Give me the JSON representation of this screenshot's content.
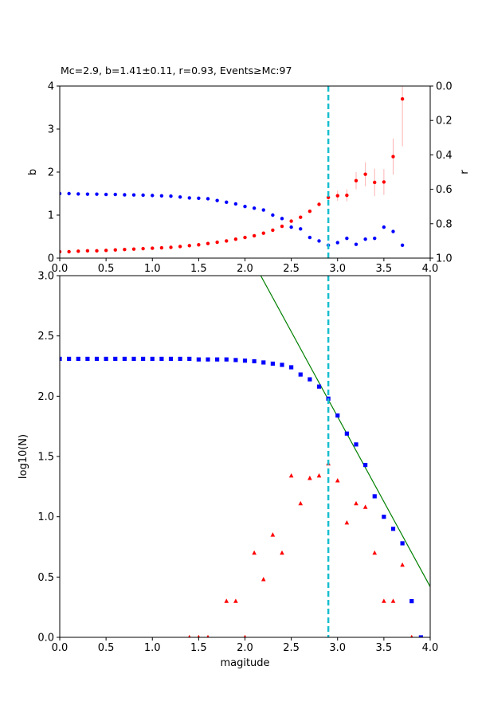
{
  "chart_data": [
    {
      "type": "scatter",
      "title": "Mc=2.9, b=1.41±0.11, r=0.93, Events≥Mc:97",
      "xlabel": "",
      "ylabel": "b",
      "y2label": "r",
      "xlim": [
        0,
        4
      ],
      "ylim": [
        0,
        4
      ],
      "y2lim": [
        1,
        0
      ],
      "xticks": [
        "0.0",
        "0.5",
        "1.0",
        "1.5",
        "2.0",
        "2.5",
        "3.0",
        "3.5",
        "4.0"
      ],
      "yticks": [
        "0",
        "1",
        "2",
        "3",
        "4"
      ],
      "y2ticks": [
        "0.0",
        "0.2",
        "0.4",
        "0.6",
        "0.8",
        "1.0"
      ],
      "mc_line": 2.9,
      "series": [
        {
          "axis": "left",
          "color": "#ff0000",
          "x": [
            0.0,
            0.1,
            0.2,
            0.3,
            0.4,
            0.5,
            0.6,
            0.7,
            0.8,
            0.9,
            1.0,
            1.1,
            1.2,
            1.3,
            1.4,
            1.5,
            1.6,
            1.7,
            1.8,
            1.9,
            2.0,
            2.1,
            2.2,
            2.3,
            2.4,
            2.5,
            2.6,
            2.7,
            2.8,
            2.9,
            3.0,
            3.1,
            3.2,
            3.3,
            3.4,
            3.5,
            3.6,
            3.7
          ],
          "y": [
            0.15,
            0.15,
            0.16,
            0.17,
            0.17,
            0.18,
            0.19,
            0.2,
            0.21,
            0.22,
            0.23,
            0.24,
            0.25,
            0.27,
            0.29,
            0.31,
            0.34,
            0.37,
            0.4,
            0.44,
            0.48,
            0.52,
            0.58,
            0.65,
            0.74,
            0.86,
            0.95,
            1.09,
            1.25,
            1.41,
            1.45,
            1.46,
            1.8,
            1.95,
            1.76,
            1.77,
            2.36,
            3.7
          ],
          "err": [
            0,
            0,
            0,
            0,
            0,
            0,
            0,
            0,
            0,
            0,
            0,
            0,
            0,
            0,
            0,
            0,
            0,
            0,
            0,
            0,
            0,
            0,
            0,
            0,
            0,
            0,
            0,
            0,
            0,
            0.11,
            0.12,
            0.14,
            0.2,
            0.28,
            0.32,
            0.3,
            0.42,
            1.1
          ]
        },
        {
          "axis": "right",
          "color": "#0000ff",
          "x": [
            0.0,
            0.1,
            0.2,
            0.3,
            0.4,
            0.5,
            0.6,
            0.7,
            0.8,
            0.9,
            1.0,
            1.1,
            1.2,
            1.3,
            1.4,
            1.5,
            1.6,
            1.7,
            1.8,
            1.9,
            2.0,
            2.1,
            2.2,
            2.3,
            2.4,
            2.5,
            2.6,
            2.7,
            2.8,
            2.9,
            3.0,
            3.1,
            3.2,
            3.3,
            3.4,
            3.5,
            3.6,
            3.7
          ],
          "y": [
            0.625,
            0.625,
            0.627,
            0.628,
            0.628,
            0.63,
            0.63,
            0.632,
            0.633,
            0.634,
            0.636,
            0.638,
            0.64,
            0.645,
            0.65,
            0.652,
            0.655,
            0.665,
            0.675,
            0.685,
            0.7,
            0.71,
            0.72,
            0.75,
            0.77,
            0.82,
            0.83,
            0.88,
            0.9,
            0.925,
            0.91,
            0.885,
            0.92,
            0.89,
            0.885,
            0.82,
            0.845,
            0.925
          ]
        }
      ]
    },
    {
      "type": "scatter",
      "title": "",
      "xlabel": "magitude",
      "ylabel": "log10(N)",
      "xlim": [
        0,
        4
      ],
      "ylim": [
        0,
        3
      ],
      "xticks": [
        "0.0",
        "0.5",
        "1.0",
        "1.5",
        "2.0",
        "2.5",
        "3.0",
        "3.5",
        "4.0"
      ],
      "yticks": [
        "0.0",
        "0.5",
        "1.0",
        "1.5",
        "2.0",
        "2.5",
        "3.0"
      ],
      "mc_line": 2.9,
      "fit_line": {
        "a": 6.06,
        "b": 1.41,
        "color": "#008000"
      },
      "series": [
        {
          "marker": "square",
          "color": "#0000ff",
          "x": [
            0.0,
            0.1,
            0.2,
            0.3,
            0.4,
            0.5,
            0.6,
            0.7,
            0.8,
            0.9,
            1.0,
            1.1,
            1.2,
            1.3,
            1.4,
            1.5,
            1.6,
            1.7,
            1.8,
            1.9,
            2.0,
            2.1,
            2.2,
            2.3,
            2.4,
            2.5,
            2.6,
            2.7,
            2.8,
            2.9,
            3.0,
            3.1,
            3.2,
            3.3,
            3.4,
            3.5,
            3.6,
            3.7,
            3.8,
            3.9
          ],
          "y": [
            2.31,
            2.31,
            2.31,
            2.31,
            2.31,
            2.31,
            2.31,
            2.31,
            2.31,
            2.31,
            2.31,
            2.31,
            2.31,
            2.31,
            2.31,
            2.305,
            2.305,
            2.305,
            2.305,
            2.3,
            2.295,
            2.29,
            2.28,
            2.27,
            2.26,
            2.24,
            2.18,
            2.14,
            2.08,
            1.98,
            1.84,
            1.69,
            1.6,
            1.43,
            1.17,
            1.0,
            0.9,
            0.78,
            0.3,
            0.0
          ]
        },
        {
          "marker": "triangle",
          "color": "#ff0000",
          "x": [
            1.4,
            1.5,
            1.6,
            1.8,
            1.9,
            2.0,
            2.1,
            2.2,
            2.3,
            2.4,
            2.5,
            2.6,
            2.7,
            2.8,
            2.9,
            3.0,
            3.1,
            3.2,
            3.3,
            3.4,
            3.5,
            3.6,
            3.7,
            3.8
          ],
          "y": [
            0.0,
            0.0,
            0.0,
            0.3,
            0.3,
            0.0,
            0.7,
            0.48,
            0.85,
            0.7,
            1.34,
            1.11,
            1.32,
            1.34,
            1.44,
            1.3,
            0.95,
            1.11,
            1.08,
            0.7,
            0.3,
            0.3,
            0.6,
            0.0
          ]
        }
      ]
    }
  ]
}
